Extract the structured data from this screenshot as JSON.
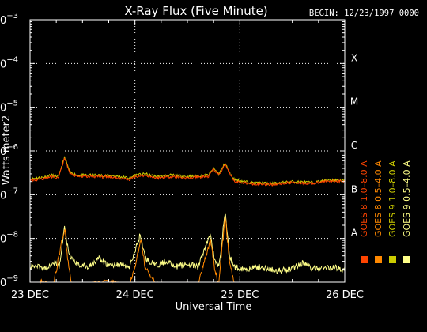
{
  "chart_data": {
    "type": "line",
    "title": "X-Ray Flux (Five Minute)",
    "begin_label": "BEGIN: 12/23/1997 0000",
    "xlabel": "Universal Time",
    "ylabel": "Watts meter2",
    "y_scale": "log",
    "ylim": [
      1e-09,
      0.001
    ],
    "y_ticks": [
      {
        "value": 1e-09,
        "base": "10",
        "exp": "−9"
      },
      {
        "value": 1e-08,
        "base": "10",
        "exp": "−8"
      },
      {
        "value": 1e-07,
        "base": "10",
        "exp": "−7"
      },
      {
        "value": 1e-06,
        "base": "10",
        "exp": "−6"
      },
      {
        "value": 1e-05,
        "base": "10",
        "exp": "−5"
      },
      {
        "value": 0.0001,
        "base": "10",
        "exp": "−4"
      },
      {
        "value": 0.001,
        "base": "10",
        "exp": "−3"
      }
    ],
    "x_unit": "day",
    "xlim": [
      0,
      3
    ],
    "x_ticks": [
      {
        "value": 0,
        "label": "23 DEC"
      },
      {
        "value": 1,
        "label": "24 DEC"
      },
      {
        "value": 2,
        "label": "25 DEC"
      },
      {
        "value": 3,
        "label": "26 DEC"
      }
    ],
    "vertical_gridlines_at": [
      1,
      2
    ],
    "class_labels": [
      {
        "value": 0.0001,
        "label": "X"
      },
      {
        "value": 1e-05,
        "label": "M"
      },
      {
        "value": 1e-06,
        "label": "C"
      },
      {
        "value": 1e-07,
        "label": "B"
      },
      {
        "value": 1e-08,
        "label": "A"
      }
    ],
    "legend_position": "right",
    "series": [
      {
        "name": "GOES 8 1.0–8.0 A",
        "color": "#ff4400",
        "band": "long",
        "points": [
          [
            0,
            2.1e-07
          ],
          [
            0.12,
            2.3e-07
          ],
          [
            0.2,
            2.6e-07
          ],
          [
            0.27,
            2.4e-07
          ],
          [
            0.33,
            7e-07
          ],
          [
            0.38,
            3e-07
          ],
          [
            0.45,
            2.6e-07
          ],
          [
            0.6,
            2.6e-07
          ],
          [
            0.8,
            2.5e-07
          ],
          [
            0.95,
            2.2e-07
          ],
          [
            1.0,
            2.6e-07
          ],
          [
            1.1,
            2.8e-07
          ],
          [
            1.2,
            2.4e-07
          ],
          [
            1.35,
            2.6e-07
          ],
          [
            1.5,
            2.4e-07
          ],
          [
            1.7,
            2.6e-07
          ],
          [
            1.75,
            3.8e-07
          ],
          [
            1.8,
            2.8e-07
          ],
          [
            1.86,
            5e-07
          ],
          [
            1.9,
            3e-07
          ],
          [
            1.95,
            2e-07
          ],
          [
            2.1,
            1.8e-07
          ],
          [
            2.3,
            1.7e-07
          ],
          [
            2.5,
            1.9e-07
          ],
          [
            2.7,
            1.8e-07
          ],
          [
            2.85,
            2.1e-07
          ],
          [
            3.0,
            2e-07
          ]
        ]
      },
      {
        "name": "GOES 8 0.5–4.0 A",
        "color": "#ff8800",
        "band": "short",
        "points": [
          [
            0,
            6e-10
          ],
          [
            0.1,
            1e-09
          ],
          [
            0.22,
            8e-10
          ],
          [
            0.33,
            1.8e-08
          ],
          [
            0.36,
            3e-09
          ],
          [
            0.4,
            8e-10
          ],
          [
            0.6,
            9e-10
          ],
          [
            0.75,
            1e-09
          ],
          [
            0.95,
            8e-10
          ],
          [
            1.06,
            9e-09
          ],
          [
            1.1,
            2e-09
          ],
          [
            1.2,
            9e-10
          ],
          [
            1.4,
            8e-10
          ],
          [
            1.5,
            9e-10
          ],
          [
            1.6,
            8e-10
          ],
          [
            1.72,
            1e-08
          ],
          [
            1.76,
            2e-09
          ],
          [
            1.8,
            9e-10
          ],
          [
            1.86,
            3.5e-08
          ],
          [
            1.9,
            3e-09
          ],
          [
            1.95,
            8e-10
          ],
          [
            2.2,
            6e-10
          ],
          [
            2.5,
            6e-10
          ],
          [
            2.8,
            6e-10
          ],
          [
            3.0,
            6e-10
          ]
        ]
      },
      {
        "name": "GOES 9 1.0–8.0 A",
        "color": "#cccc00",
        "band": "long",
        "points": [
          [
            0,
            2.3e-07
          ],
          [
            0.12,
            2.5e-07
          ],
          [
            0.2,
            2.8e-07
          ],
          [
            0.27,
            2.6e-07
          ],
          [
            0.33,
            7.3e-07
          ],
          [
            0.38,
            3.2e-07
          ],
          [
            0.45,
            2.8e-07
          ],
          [
            0.6,
            2.8e-07
          ],
          [
            0.8,
            2.7e-07
          ],
          [
            0.95,
            2.4e-07
          ],
          [
            1.0,
            2.8e-07
          ],
          [
            1.1,
            3e-07
          ],
          [
            1.2,
            2.6e-07
          ],
          [
            1.35,
            2.8e-07
          ],
          [
            1.5,
            2.6e-07
          ],
          [
            1.7,
            2.8e-07
          ],
          [
            1.75,
            4e-07
          ],
          [
            1.8,
            3e-07
          ],
          [
            1.86,
            5.3e-07
          ],
          [
            1.9,
            3.2e-07
          ],
          [
            1.95,
            2.2e-07
          ],
          [
            2.1,
            1.9e-07
          ],
          [
            2.3,
            1.8e-07
          ],
          [
            2.5,
            2e-07
          ],
          [
            2.7,
            1.9e-07
          ],
          [
            2.85,
            2.2e-07
          ],
          [
            3.0,
            2.1e-07
          ]
        ]
      },
      {
        "name": "GOES 9 0.5–4.0 A",
        "color": "#ffff88",
        "band": "short",
        "points": [
          [
            0,
            2.2e-09
          ],
          [
            0.08,
            2.5e-09
          ],
          [
            0.15,
            2e-09
          ],
          [
            0.22,
            3e-09
          ],
          [
            0.28,
            2.2e-09
          ],
          [
            0.33,
            1.9e-08
          ],
          [
            0.37,
            4e-09
          ],
          [
            0.45,
            2.6e-09
          ],
          [
            0.55,
            2.2e-09
          ],
          [
            0.65,
            3.5e-09
          ],
          [
            0.75,
            2.4e-09
          ],
          [
            0.85,
            2.6e-09
          ],
          [
            0.95,
            2.2e-09
          ],
          [
            1.05,
            1.2e-08
          ],
          [
            1.1,
            3.5e-09
          ],
          [
            1.2,
            2.4e-09
          ],
          [
            1.3,
            3e-09
          ],
          [
            1.4,
            2.3e-09
          ],
          [
            1.5,
            2.6e-09
          ],
          [
            1.6,
            2.2e-09
          ],
          [
            1.72,
            1.3e-08
          ],
          [
            1.76,
            3e-09
          ],
          [
            1.8,
            2.2e-09
          ],
          [
            1.86,
            4.2e-08
          ],
          [
            1.9,
            4e-09
          ],
          [
            1.95,
            2.2e-09
          ],
          [
            2.05,
            2e-09
          ],
          [
            2.2,
            2.2e-09
          ],
          [
            2.35,
            1.8e-09
          ],
          [
            2.5,
            2.1e-09
          ],
          [
            2.6,
            2.8e-09
          ],
          [
            2.7,
            2e-09
          ],
          [
            2.85,
            2.2e-09
          ],
          [
            3.0,
            2e-09
          ]
        ]
      }
    ]
  }
}
